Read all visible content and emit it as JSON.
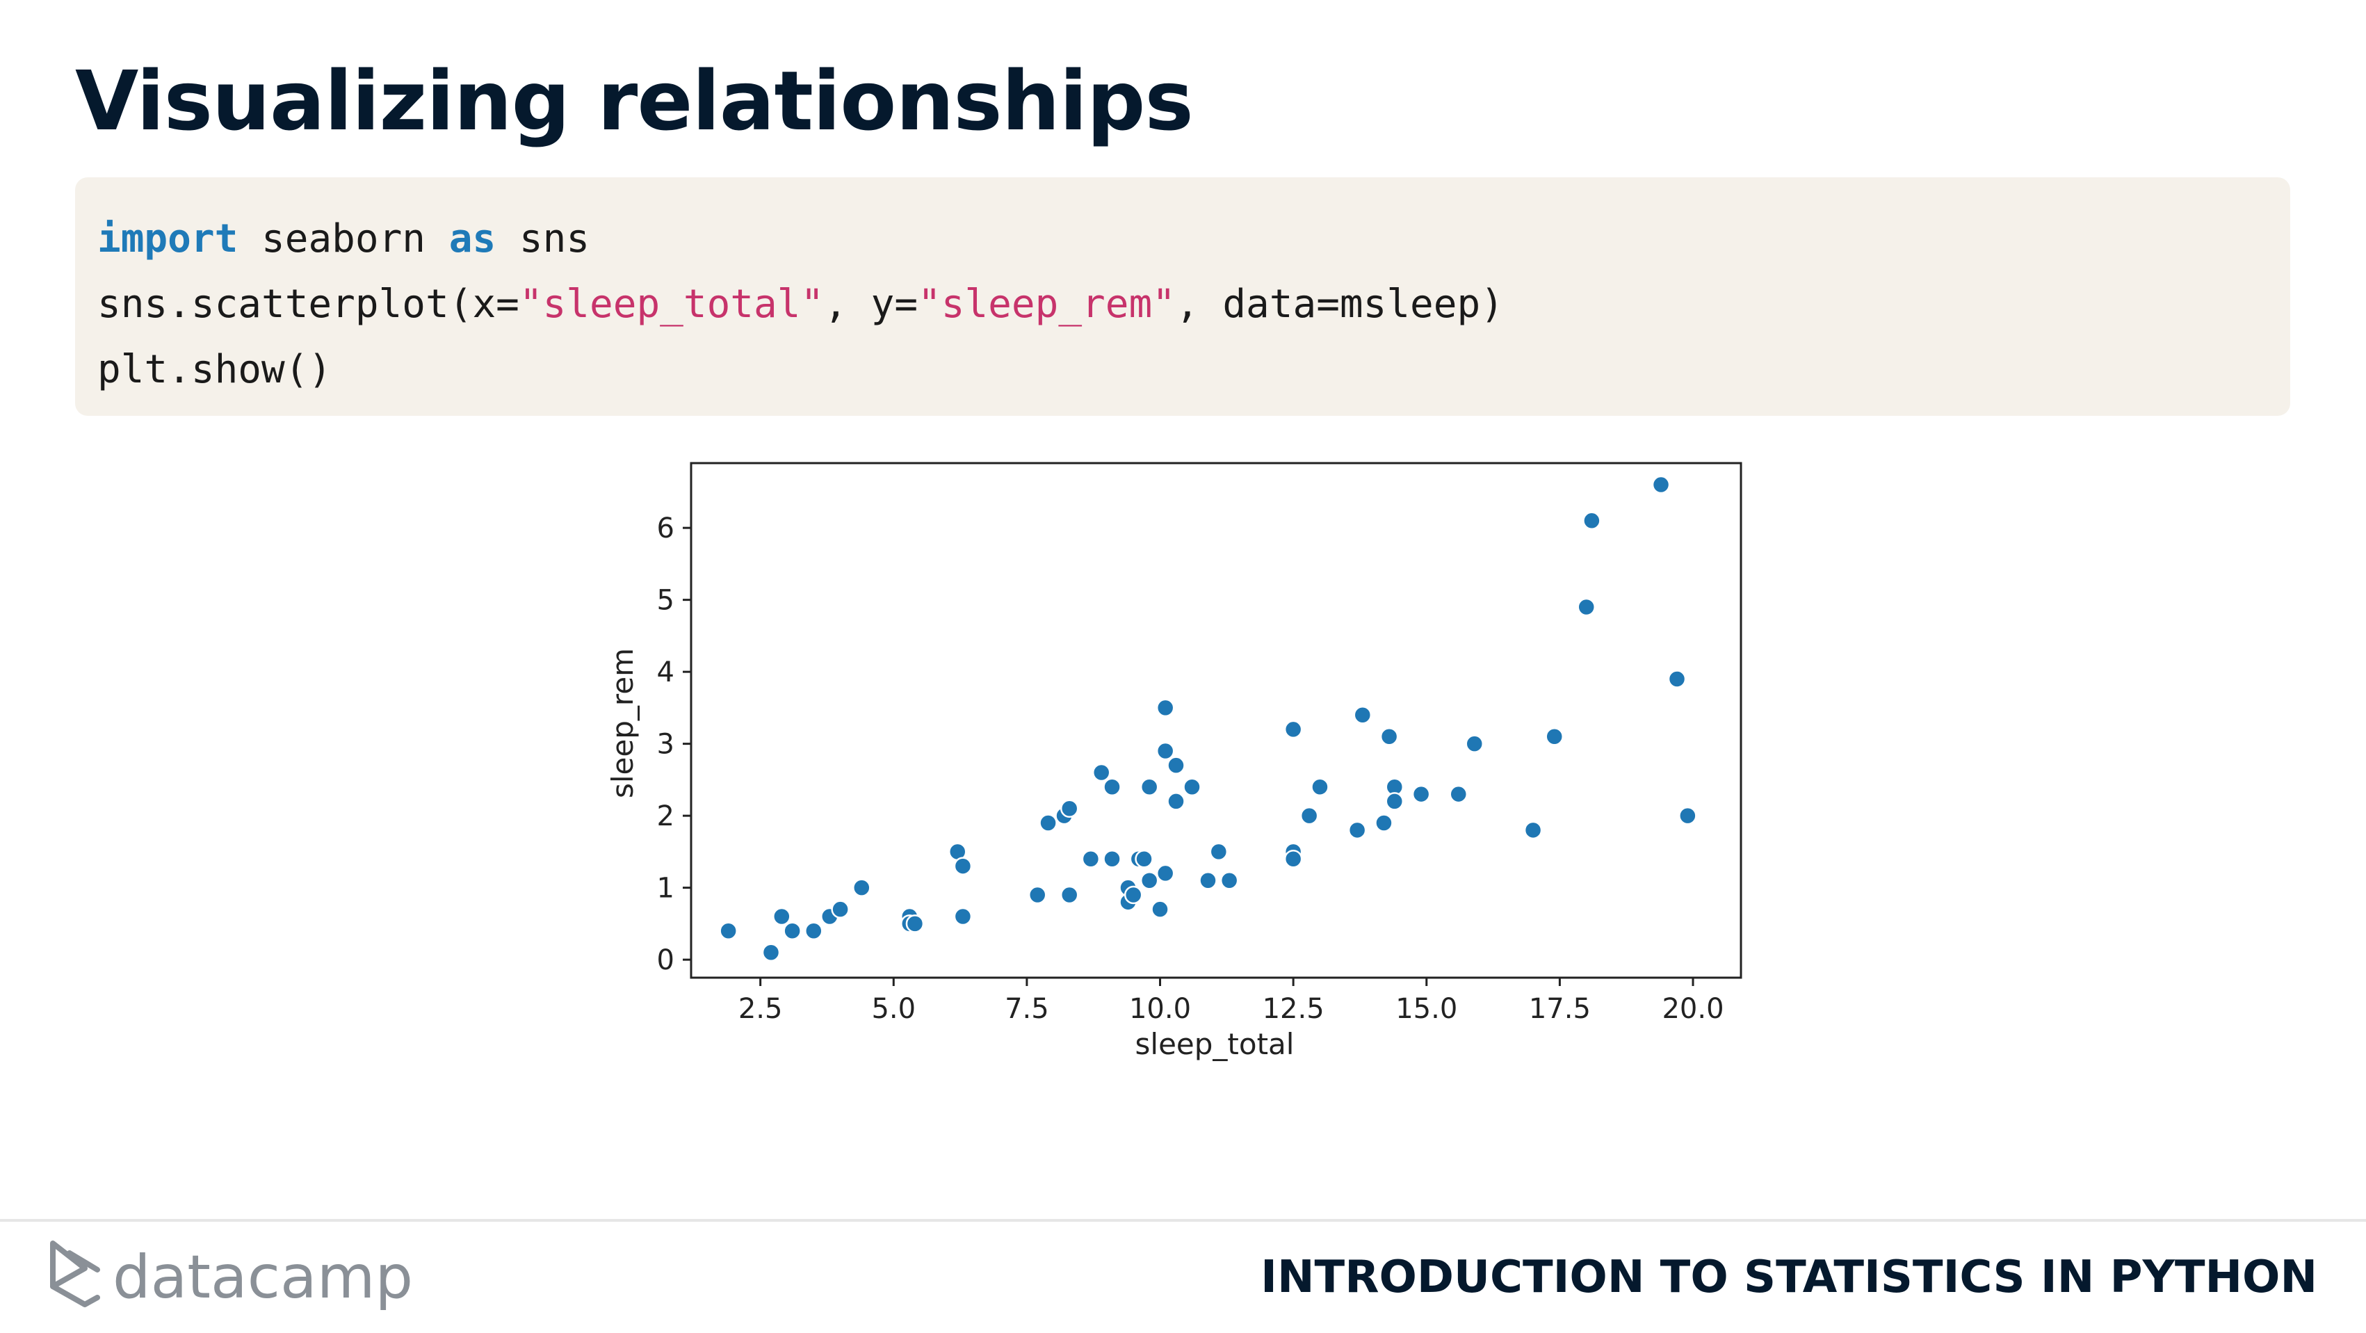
{
  "slide": {
    "title": "Visualizing relationships"
  },
  "code": {
    "lines": [
      [
        {
          "t": "import",
          "k": "kw"
        },
        {
          "t": " seaborn ",
          "k": ""
        },
        {
          "t": "as",
          "k": "kw"
        },
        {
          "t": " sns",
          "k": ""
        }
      ],
      [
        {
          "t": "sns.scatterplot(x=",
          "k": ""
        },
        {
          "t": "\"sleep_total\"",
          "k": "str"
        },
        {
          "t": ", y=",
          "k": ""
        },
        {
          "t": "\"sleep_rem\"",
          "k": "str"
        },
        {
          "t": ", data=msleep)",
          "k": ""
        }
      ],
      [
        {
          "t": "plt.show()",
          "k": ""
        }
      ]
    ]
  },
  "chart_data": {
    "type": "scatter",
    "xlabel": "sleep_total",
    "ylabel": "sleep_rem",
    "xlim": [
      1.2,
      20.9
    ],
    "ylim": [
      -0.25,
      6.9
    ],
    "xticks": [
      2.5,
      5.0,
      7.5,
      10.0,
      12.5,
      15.0,
      17.5,
      20.0
    ],
    "xtick_labels": [
      "2.5",
      "5.0",
      "7.5",
      "10.0",
      "12.5",
      "15.0",
      "17.5",
      "20.0"
    ],
    "yticks": [
      0,
      1,
      2,
      3,
      4,
      5,
      6
    ],
    "ytick_labels": [
      "0",
      "1",
      "2",
      "3",
      "4",
      "5",
      "6"
    ],
    "grid": false,
    "point_color": "#1f77b4",
    "points": [
      [
        1.9,
        0.4
      ],
      [
        2.7,
        0.1
      ],
      [
        2.9,
        0.6
      ],
      [
        3.1,
        0.4
      ],
      [
        3.5,
        0.4
      ],
      [
        3.8,
        0.6
      ],
      [
        4.0,
        0.7
      ],
      [
        4.4,
        1.0
      ],
      [
        5.3,
        0.6
      ],
      [
        5.3,
        0.5
      ],
      [
        5.4,
        0.5
      ],
      [
        6.2,
        1.5
      ],
      [
        6.3,
        1.3
      ],
      [
        6.3,
        0.6
      ],
      [
        7.7,
        0.9
      ],
      [
        7.9,
        1.9
      ],
      [
        8.2,
        2.0
      ],
      [
        8.3,
        2.1
      ],
      [
        8.3,
        0.9
      ],
      [
        8.7,
        1.4
      ],
      [
        8.9,
        2.6
      ],
      [
        9.1,
        2.4
      ],
      [
        9.1,
        1.4
      ],
      [
        9.4,
        1.0
      ],
      [
        9.4,
        0.8
      ],
      [
        9.5,
        0.9
      ],
      [
        9.6,
        1.4
      ],
      [
        9.7,
        1.4
      ],
      [
        9.8,
        2.4
      ],
      [
        9.8,
        1.1
      ],
      [
        10.0,
        0.7
      ],
      [
        10.1,
        3.5
      ],
      [
        10.1,
        2.9
      ],
      [
        10.1,
        1.2
      ],
      [
        10.3,
        2.7
      ],
      [
        10.3,
        2.2
      ],
      [
        10.6,
        2.4
      ],
      [
        10.9,
        1.1
      ],
      [
        11.1,
        1.5
      ],
      [
        11.3,
        1.1
      ],
      [
        12.5,
        3.2
      ],
      [
        12.5,
        1.5
      ],
      [
        12.5,
        1.4
      ],
      [
        12.8,
        2.0
      ],
      [
        13.0,
        2.4
      ],
      [
        13.7,
        1.8
      ],
      [
        13.8,
        3.4
      ],
      [
        14.2,
        1.9
      ],
      [
        14.3,
        3.1
      ],
      [
        14.4,
        2.4
      ],
      [
        14.4,
        2.2
      ],
      [
        14.9,
        2.3
      ],
      [
        15.6,
        2.3
      ],
      [
        15.9,
        3.0
      ],
      [
        17.0,
        1.8
      ],
      [
        17.4,
        3.1
      ],
      [
        18.0,
        4.9
      ],
      [
        18.1,
        6.1
      ],
      [
        19.4,
        6.6
      ],
      [
        19.7,
        3.9
      ],
      [
        19.9,
        2.0
      ]
    ]
  },
  "footer": {
    "brand": "datacamp",
    "course": "INTRODUCTION TO STATISTICS IN PYTHON"
  }
}
